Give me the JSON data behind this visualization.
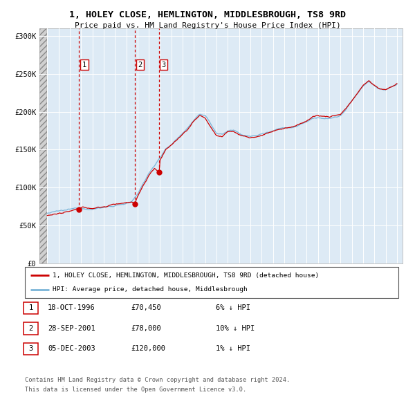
{
  "title_line1": "1, HOLEY CLOSE, HEMLINGTON, MIDDLESBROUGH, TS8 9RD",
  "title_line2": "Price paid vs. HM Land Registry's House Price Index (HPI)",
  "ylim": [
    0,
    310000
  ],
  "yticks": [
    0,
    50000,
    100000,
    150000,
    200000,
    250000,
    300000
  ],
  "ytick_labels": [
    "£0",
    "£50K",
    "£100K",
    "£150K",
    "£200K",
    "£250K",
    "£300K"
  ],
  "sale_dates": [
    1996.79,
    2001.74,
    2003.92
  ],
  "sale_prices": [
    70450,
    78000,
    120000
  ],
  "sale_labels": [
    "1",
    "2",
    "3"
  ],
  "legend_line1": "1, HOLEY CLOSE, HEMLINGTON, MIDDLESBROUGH, TS8 9RD (detached house)",
  "legend_line2": "HPI: Average price, detached house, Middlesbrough",
  "table_rows": [
    [
      "1",
      "18-OCT-1996",
      "£70,450",
      "6% ↓ HPI"
    ],
    [
      "2",
      "28-SEP-2001",
      "£78,000",
      "10% ↓ HPI"
    ],
    [
      "3",
      "05-DEC-2003",
      "£120,000",
      "1% ↓ HPI"
    ]
  ],
  "footnote_line1": "Contains HM Land Registry data © Crown copyright and database right 2024.",
  "footnote_line2": "This data is licensed under the Open Government Licence v3.0.",
  "hpi_color": "#7ab4d8",
  "sale_color": "#cc0000",
  "bg_color": "#ddeaf5",
  "hatch_bg": "#e8e8e8"
}
